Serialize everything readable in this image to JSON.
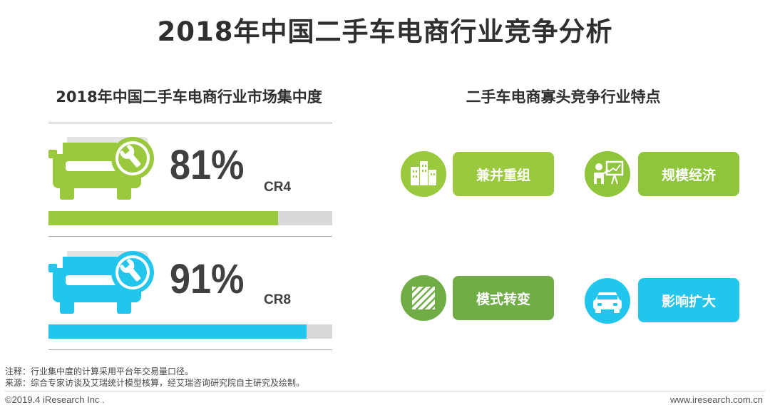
{
  "title": "2018年中国二手车电商行业竞争分析",
  "left": {
    "title": "2018年中国二手车电商行业市场集中度",
    "metrics": [
      {
        "percent_label": "81%",
        "name": "CR4",
        "value": 0.81,
        "color": "#9ac93d"
      },
      {
        "percent_label": "91%",
        "name": "CR8",
        "value": 0.91,
        "color": "#22c6ec"
      }
    ]
  },
  "right": {
    "title": "二手车电商寡头竞争行业特点",
    "features": [
      {
        "label": "兼并重组",
        "icon": "buildings-icon",
        "color": "#9ac93d"
      },
      {
        "label": "规模经济",
        "icon": "presenter-chart-icon",
        "color": "#8fc53b"
      },
      {
        "label": "模式转变",
        "icon": "hatched-square-icon",
        "color": "#70ad47"
      },
      {
        "label": "影响扩大",
        "icon": "car-front-icon",
        "color": "#22c6ec"
      }
    ]
  },
  "notes": {
    "note1": "注释：行业集中度的计算采用平台年交易量口径。",
    "note2": "来源：综合专家访谈及艾瑞统计模型核算，经艾瑞咨询研究院自主研究及绘制。"
  },
  "footer": {
    "copyright": "©2019.4 iResearch Inc .",
    "website": "www.iresearch.com.cn"
  }
}
